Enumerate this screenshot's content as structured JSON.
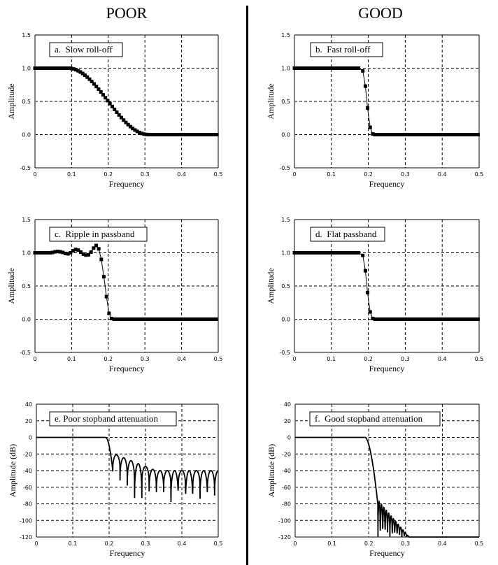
{
  "columns": {
    "left": "POOR",
    "right": "GOOD"
  },
  "chart_data": [
    {
      "id": "a",
      "type": "scatter",
      "title": "a.  Slow roll-off",
      "xlabel": "Frequency",
      "ylabel": "Amplitude",
      "xlim": [
        0,
        0.5
      ],
      "ylim": [
        -0.5,
        1.5
      ],
      "xticks": [
        "0",
        "0.1",
        "0.2",
        "0.3",
        "0.4",
        "0.5"
      ],
      "yticks": [
        "-0.5",
        "0.0",
        "0.5",
        "1.0",
        "1.5"
      ],
      "curve": "slow"
    },
    {
      "id": "b",
      "type": "scatter",
      "title": "b.  Fast roll-off",
      "xlabel": "Frequency",
      "ylabel": "Amplitude",
      "xlim": [
        0,
        0.5
      ],
      "ylim": [
        -0.5,
        1.5
      ],
      "xticks": [
        "0",
        "0.1",
        "0.2",
        "0.3",
        "0.4",
        "0.5"
      ],
      "yticks": [
        "-0.5",
        "0.0",
        "0.5",
        "1.0",
        "1.5"
      ],
      "curve": "fast"
    },
    {
      "id": "c",
      "type": "scatter",
      "title": "c.  Ripple in passband",
      "xlabel": "Frequency",
      "ylabel": "Amplitude",
      "xlim": [
        0,
        0.5
      ],
      "ylim": [
        -0.5,
        1.5
      ],
      "xticks": [
        "0",
        "0.1",
        "0.2",
        "0.3",
        "0.4",
        "0.5"
      ],
      "yticks": [
        "-0.5",
        "0.0",
        "0.5",
        "1.0",
        "1.5"
      ],
      "curve": "ripple"
    },
    {
      "id": "d",
      "type": "scatter",
      "title": "d.  Flat passband",
      "xlabel": "Frequency",
      "ylabel": "Amplitude",
      "xlim": [
        0,
        0.5
      ],
      "ylim": [
        -0.5,
        1.5
      ],
      "xticks": [
        "0",
        "0.1",
        "0.2",
        "0.3",
        "0.4",
        "0.5"
      ],
      "yticks": [
        "-0.5",
        "0.0",
        "0.5",
        "1.0",
        "1.5"
      ],
      "curve": "fast"
    },
    {
      "id": "e",
      "type": "line",
      "title": "e. Poor stopband attenuation",
      "xlabel": "Frequency",
      "ylabel": "Amplitude (dB)",
      "xlim": [
        0,
        0.5
      ],
      "ylim": [
        -120,
        40
      ],
      "xticks": [
        "0",
        "0.1",
        "0.2",
        "0.3",
        "0.4",
        "0.5"
      ],
      "yticks": [
        "-120",
        "-100",
        "-80",
        "-60",
        "-40",
        "-20",
        "0",
        "20",
        "40"
      ],
      "curve": "poordb"
    },
    {
      "id": "f",
      "type": "line",
      "title": "f.  Good stopband attenuation",
      "xlabel": "Frequency",
      "ylabel": "Amplitude (dB)",
      "xlim": [
        0,
        0.5
      ],
      "ylim": [
        -120,
        40
      ],
      "xticks": [
        "0",
        "0.1",
        "0.2",
        "0.3",
        "0.4",
        "0.5"
      ],
      "yticks": [
        "-120",
        "-100",
        "-80",
        "-60",
        "-40",
        "-20",
        "0",
        "20",
        "40"
      ],
      "curve": "gooddb"
    }
  ]
}
